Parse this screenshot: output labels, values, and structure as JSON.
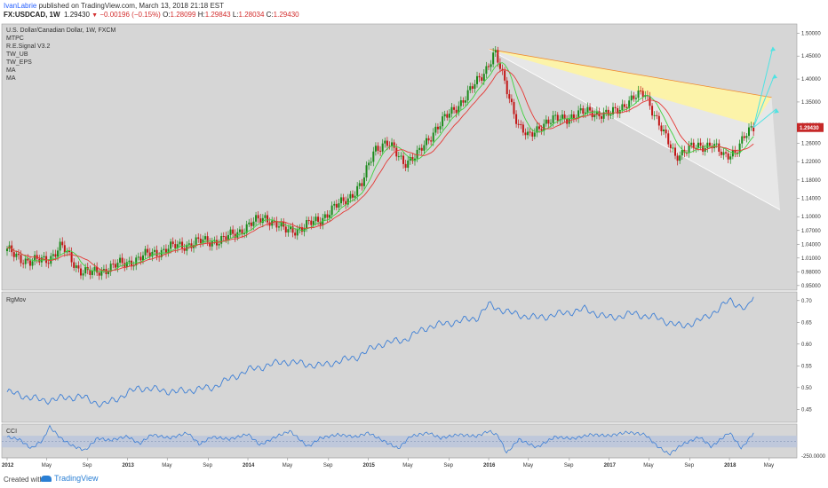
{
  "header": {
    "author": "IvanLabrie",
    "published": "published on TradingView.com, March 13, 2018 21:18 EST",
    "symbol": "FX:USDCAD, 1W",
    "last": "1.29430",
    "change_arrow": "▼",
    "change": "−0.00196 (−0.15%)",
    "open_label": "O:",
    "open": "1.28099",
    "high_label": "H:",
    "high": "1.29843",
    "low_label": "L:",
    "low": "1.28034",
    "close_label": "C:",
    "close": "1.29430"
  },
  "legend": [
    "U.S. Dollar/Canadian Dollar, 1W, FXCM",
    "MTPC",
    "R.E.Signal V3.2",
    "TW_UB",
    "TW_EPS",
    "MA",
    "MA"
  ],
  "last_price_badge": "1.29430",
  "footer": {
    "created_with": "Created with",
    "brand": "TradingView"
  },
  "colors": {
    "background": "#d6d6d6",
    "up_bar": "#1b8a1b",
    "down_bar": "#c21616",
    "ma_green": "#3fd13f",
    "ma_red": "#e53935",
    "channel_fill": "#fff59d",
    "indicator_line": "#3d7fd6",
    "cci_band": "#b9c4dc",
    "badge": "#c62828"
  },
  "chart_data": [
    {
      "type": "candlestick",
      "title": "U.S. Dollar/Canadian Dollar, 1W, FXCM",
      "ylim": [
        0.94,
        1.52
      ],
      "y_ticks": [
        "1.50000",
        "1.45000",
        "1.40000",
        "1.35000",
        "1.30000",
        "1.26000",
        "1.22000",
        "1.18000",
        "1.14000",
        "1.10000",
        "1.07000",
        "1.04000",
        "1.01000",
        "0.98000",
        "0.95000"
      ],
      "x_ticks": [
        "2012",
        "May",
        "Sep",
        "2013",
        "May",
        "Sep",
        "2014",
        "May",
        "Sep",
        "2015",
        "May",
        "Sep",
        "2016",
        "May",
        "Sep",
        "2017",
        "May",
        "Sep",
        "2018",
        "May"
      ],
      "x_range": [
        2012.0,
        2018.42
      ],
      "path_x": [
        2012.0,
        2012.2,
        2012.35,
        2012.45,
        2012.6,
        2012.7,
        2012.85,
        2013.0,
        2013.2,
        2013.4,
        2013.6,
        2013.8,
        2014.0,
        2014.15,
        2014.3,
        2014.45,
        2014.6,
        2014.8,
        2014.95,
        2015.05,
        2015.15,
        2015.3,
        2015.4,
        2015.55,
        2015.7,
        2015.85,
        2015.95,
        2016.05,
        2016.12,
        2016.25,
        2016.33,
        2016.45,
        2016.55,
        2016.7,
        2016.85,
        2017.0,
        2017.15,
        2017.3,
        2017.35,
        2017.45,
        2017.55,
        2017.7,
        2017.85,
        2017.95,
        2018.05,
        2018.15,
        2018.2
      ],
      "path_y": [
        1.025,
        1.0,
        1.01,
        1.035,
        0.985,
        0.975,
        0.99,
        1.0,
        1.02,
        1.035,
        1.045,
        1.05,
        1.08,
        1.1,
        1.07,
        1.075,
        1.095,
        1.135,
        1.17,
        1.25,
        1.26,
        1.22,
        1.23,
        1.29,
        1.33,
        1.375,
        1.41,
        1.46,
        1.4,
        1.3,
        1.27,
        1.305,
        1.31,
        1.32,
        1.33,
        1.32,
        1.35,
        1.37,
        1.34,
        1.28,
        1.235,
        1.25,
        1.26,
        1.23,
        1.245,
        1.28,
        1.294
      ],
      "last_price": 1.2943,
      "annotations": {
        "upper_line": [
          [
            2016.0,
            1.465
          ],
          [
            2018.35,
            1.36
          ]
        ],
        "lower_line": [
          [
            2016.0,
            1.465
          ],
          [
            2018.42,
            1.115
          ]
        ],
        "yellow_fill_lower_edge": [
          [
            2016.0,
            1.465
          ],
          [
            2018.2,
            1.3
          ]
        ],
        "projection_arrows_targets": [
          1.47,
          1.41,
          1.335
        ]
      }
    },
    {
      "type": "line",
      "title": "RgMov",
      "ylim": [
        0.42,
        0.72
      ],
      "y_ticks": [
        "0.70",
        "0.65",
        "0.60",
        "0.55",
        "0.50",
        "0.45"
      ],
      "x": [
        2012.0,
        2012.3,
        2012.6,
        2012.8,
        2013.1,
        2013.4,
        2013.7,
        2014.0,
        2014.3,
        2014.6,
        2014.9,
        2015.1,
        2015.3,
        2015.5,
        2015.7,
        2015.9,
        2016.0,
        2016.2,
        2016.4,
        2016.6,
        2016.8,
        2017.0,
        2017.2,
        2017.4,
        2017.6,
        2017.8,
        2018.0,
        2018.15,
        2018.2
      ],
      "values": [
        0.49,
        0.47,
        0.48,
        0.46,
        0.5,
        0.49,
        0.5,
        0.54,
        0.56,
        0.55,
        0.57,
        0.6,
        0.61,
        0.64,
        0.65,
        0.66,
        0.69,
        0.67,
        0.66,
        0.67,
        0.68,
        0.66,
        0.67,
        0.66,
        0.64,
        0.66,
        0.7,
        0.68,
        0.71
      ]
    },
    {
      "type": "line",
      "title": "CCI",
      "ylim": [
        -280,
        300
      ],
      "y_ticks": [
        "250.0000",
        "0.0000",
        "-250.0000"
      ],
      "band": [
        -100,
        100
      ],
      "x": [
        2012.0,
        2012.1,
        2012.2,
        2012.3,
        2012.35,
        2012.45,
        2012.55,
        2012.65,
        2012.75,
        2012.85,
        2013.0,
        2013.1,
        2013.2,
        2013.35,
        2013.5,
        2013.6,
        2013.7,
        2013.85,
        2014.0,
        2014.1,
        2014.25,
        2014.35,
        2014.5,
        2014.6,
        2014.75,
        2014.9,
        2015.0,
        2015.1,
        2015.25,
        2015.35,
        2015.5,
        2015.6,
        2015.75,
        2015.9,
        2016.0,
        2016.08,
        2016.15,
        2016.25,
        2016.4,
        2016.55,
        2016.7,
        2016.85,
        2017.0,
        2017.15,
        2017.3,
        2017.4,
        2017.5,
        2017.6,
        2017.75,
        2017.85,
        2018.0,
        2018.1,
        2018.2
      ],
      "values": [
        80,
        40,
        -120,
        30,
        260,
        50,
        -80,
        -150,
        60,
        20,
        90,
        -40,
        120,
        60,
        150,
        -50,
        80,
        40,
        130,
        -60,
        100,
        180,
        -90,
        60,
        120,
        80,
        150,
        40,
        -120,
        90,
        150,
        60,
        120,
        90,
        180,
        100,
        -200,
        40,
        -100,
        80,
        50,
        120,
        100,
        160,
        120,
        -80,
        -220,
        -60,
        80,
        -90,
        160,
        -120,
        150
      ]
    }
  ]
}
